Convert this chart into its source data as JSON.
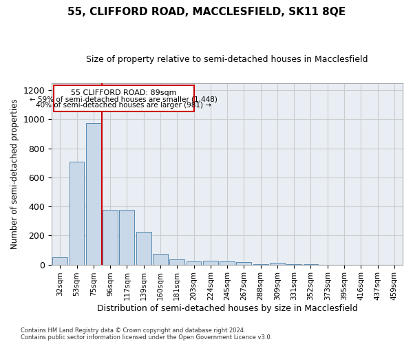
{
  "title": "55, CLIFFORD ROAD, MACCLESFIELD, SK11 8QE",
  "subtitle": "Size of property relative to semi-detached houses in Macclesfield",
  "xlabel": "Distribution of semi-detached houses by size in Macclesfield",
  "ylabel": "Number of semi-detached properties",
  "footer_line1": "Contains HM Land Registry data © Crown copyright and database right 2024.",
  "footer_line2": "Contains public sector information licensed under the Open Government Licence v3.0.",
  "annotation_title": "55 CLIFFORD ROAD: 89sqm",
  "annotation_line2": "← 59% of semi-detached houses are smaller (1,448)",
  "annotation_line3": "40% of semi-detached houses are larger (981) →",
  "bar_color": "#c8d8e8",
  "bar_edge_color": "#5a8ab0",
  "highlight_color": "#cc0000",
  "categories": [
    "32sqm",
    "53sqm",
    "75sqm",
    "96sqm",
    "117sqm",
    "139sqm",
    "160sqm",
    "181sqm",
    "203sqm",
    "224sqm",
    "245sqm",
    "267sqm",
    "288sqm",
    "309sqm",
    "331sqm",
    "352sqm",
    "373sqm",
    "395sqm",
    "416sqm",
    "437sqm",
    "459sqm"
  ],
  "values": [
    50,
    710,
    975,
    375,
    375,
    225,
    75,
    35,
    22,
    25,
    22,
    15,
    5,
    10,
    5,
    5,
    0,
    0,
    0,
    0,
    0
  ],
  "ylim": [
    0,
    1250
  ],
  "yticks": [
    0,
    200,
    400,
    600,
    800,
    1000,
    1200
  ],
  "grid_color": "#cccccc",
  "background_color": "#e8eef4"
}
